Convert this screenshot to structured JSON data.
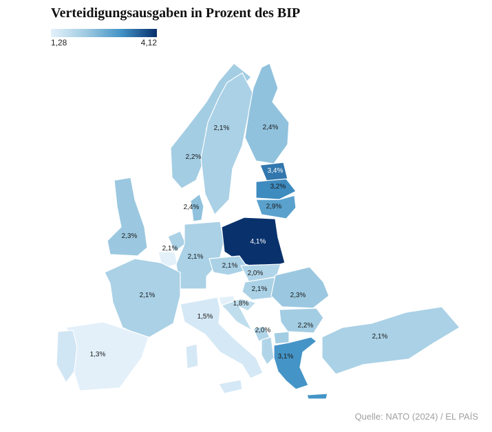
{
  "title": "Verteidigungsausgaben in Prozent des BIP",
  "legend": {
    "min_label": "1,28",
    "max_label": "4,12",
    "min": 1.28,
    "max": 4.12
  },
  "source": "Quelle: NATO  (2024) / EL PAÍS",
  "colors": {
    "low": "#e4f1fb",
    "mid": "#9ecae1",
    "midhigh": "#4292c6",
    "high": "#08306b",
    "border": "#ffffff"
  },
  "countries": {
    "norway": {
      "label": "2,2%",
      "value": 2.2
    },
    "sweden": {
      "label": "2,1%",
      "value": 2.1
    },
    "finland": {
      "label": "2,4%",
      "value": 2.4
    },
    "estonia": {
      "label": "3,4%",
      "value": 3.4
    },
    "latvia": {
      "label": "3,2%",
      "value": 3.2
    },
    "lithuania": {
      "label": "2,9%",
      "value": 2.9
    },
    "denmark": {
      "label": "2,4%",
      "value": 2.4
    },
    "uk": {
      "label": "2,3%",
      "value": 2.3
    },
    "netherlands": {
      "label": "2,1%",
      "value": 2.1
    },
    "belgium": {
      "label": "",
      "value": 1.3
    },
    "germany": {
      "label": "2,1%",
      "value": 2.1
    },
    "poland": {
      "label": "4,1%",
      "value": 4.1
    },
    "france": {
      "label": "2,1%",
      "value": 2.1
    },
    "czechia": {
      "label": "2,1%",
      "value": 2.1
    },
    "slovakia": {
      "label": "2,0%",
      "value": 2.0
    },
    "hungary": {
      "label": "2,1%",
      "value": 2.1
    },
    "slovenia": {
      "label": "",
      "value": 1.3
    },
    "croatia": {
      "label": "1,8%",
      "value": 1.8
    },
    "romania": {
      "label": "2,3%",
      "value": 2.3
    },
    "bulgaria": {
      "label": "2,2%",
      "value": 2.2
    },
    "montenegro": {
      "label": "2,0%",
      "value": 2.0
    },
    "albania": {
      "label": "",
      "value": 2.0
    },
    "north_macedonia": {
      "label": "",
      "value": 2.2
    },
    "greece": {
      "label": "3,1%",
      "value": 3.1
    },
    "italy": {
      "label": "1,5%",
      "value": 1.5
    },
    "spain": {
      "label": "1,3%",
      "value": 1.3
    },
    "portugal": {
      "label": "",
      "value": 1.55
    },
    "turkey": {
      "label": "2,1%",
      "value": 2.1
    }
  }
}
